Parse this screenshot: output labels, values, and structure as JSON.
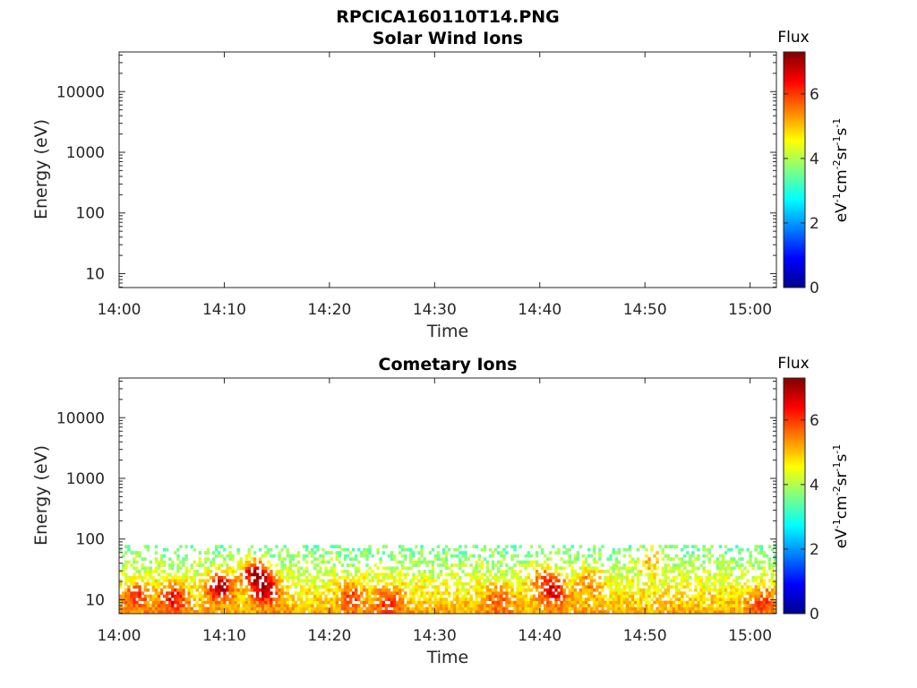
{
  "figure": {
    "title": "RPCICA160110T14.PNG"
  },
  "colorscale": {
    "colors": [
      "#00008f",
      "#0000ff",
      "#0080ff",
      "#00ffff",
      "#80ff80",
      "#ffff00",
      "#ff8000",
      "#ff0000",
      "#800000"
    ],
    "range": [
      0,
      7.3
    ],
    "ticks": [
      "0",
      "2",
      "4",
      "6"
    ],
    "tick_values": [
      0,
      2,
      4,
      6
    ],
    "title": "Flux",
    "unit_label": "eV-1cm-2sr-1s-1"
  },
  "chart_data": [
    {
      "type": "heatmap",
      "title": "Solar Wind Ions",
      "xlabel": "Time",
      "ylabel": "Energy (eV)",
      "x_ticks": [
        "14:00",
        "14:10",
        "14:20",
        "14:30",
        "14:40",
        "14:50",
        "15:00"
      ],
      "x_tick_minutes": [
        0,
        10,
        20,
        30,
        40,
        50,
        60
      ],
      "xlim_minutes": [
        0,
        62.5
      ],
      "y_scale": "log",
      "y_ticks": [
        "10",
        "100",
        "1000",
        "10000"
      ],
      "y_tick_values": [
        10,
        100,
        1000,
        10000
      ],
      "ylim": [
        5.9,
        45000
      ],
      "grid": false,
      "colorbar": "right",
      "data": "empty"
    },
    {
      "type": "heatmap",
      "title": "Cometary Ions",
      "xlabel": "Time",
      "ylabel": "Energy (eV)",
      "x_ticks": [
        "14:00",
        "14:10",
        "14:20",
        "14:30",
        "14:40",
        "14:50",
        "15:00"
      ],
      "x_tick_minutes": [
        0,
        10,
        20,
        30,
        40,
        50,
        60
      ],
      "xlim_minutes": [
        0,
        62.5
      ],
      "y_scale": "log",
      "y_ticks": [
        "10",
        "100",
        "1000",
        "10000"
      ],
      "y_tick_values": [
        10,
        100,
        1000,
        10000
      ],
      "ylim": [
        5.9,
        45000
      ],
      "grid": false,
      "colorbar": "right",
      "energy_band_eV": [
        6,
        80
      ],
      "background_flux": 4.3,
      "hotspots": [
        {
          "minute": 1.5,
          "energy": 12,
          "flux": 5.6
        },
        {
          "minute": 5.0,
          "energy": 11,
          "flux": 6.0
        },
        {
          "minute": 9.5,
          "energy": 17,
          "flux": 6.8
        },
        {
          "minute": 12.8,
          "energy": 28,
          "flux": 6.9
        },
        {
          "minute": 13.8,
          "energy": 15,
          "flux": 6.4
        },
        {
          "minute": 22.0,
          "energy": 12,
          "flux": 5.5
        },
        {
          "minute": 25.5,
          "energy": 10,
          "flux": 5.6
        },
        {
          "minute": 36.0,
          "energy": 11,
          "flux": 5.3
        },
        {
          "minute": 40.0,
          "energy": 24,
          "flux": 5.4
        },
        {
          "minute": 41.2,
          "energy": 14,
          "flux": 6.2
        },
        {
          "minute": 44.5,
          "energy": 20,
          "flux": 5.3
        },
        {
          "minute": 50.5,
          "energy": 48,
          "flux": 5.6
        },
        {
          "minute": 61.0,
          "energy": 10,
          "flux": 5.4
        }
      ]
    }
  ]
}
